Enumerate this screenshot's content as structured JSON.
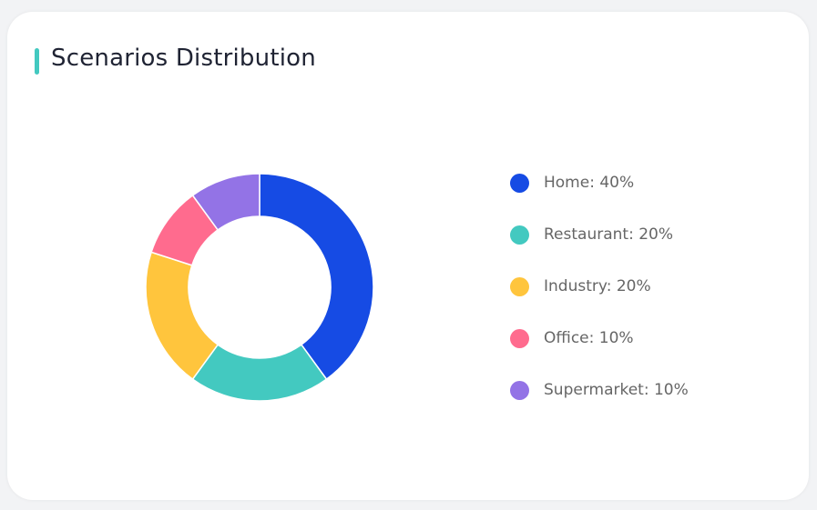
{
  "chart_data": {
    "type": "pie",
    "title": "Scenarios Distribution",
    "donut": true,
    "legend_position": "right",
    "slices": [
      {
        "label": "Home",
        "value": 40,
        "display": "Home: 40%",
        "color": "#164be4"
      },
      {
        "label": "Restaurant",
        "value": 20,
        "display": "Restaurant: 20%",
        "color": "#43c9c0"
      },
      {
        "label": "Industry",
        "value": 20,
        "display": "Industry: 20%",
        "color": "#ffc53d"
      },
      {
        "label": "Office",
        "value": 10,
        "display": "Office: 10%",
        "color": "#ff6b8e"
      },
      {
        "label": "Supermarket",
        "value": 10,
        "display": "Supermarket: 10%",
        "color": "#9373e6"
      }
    ],
    "accent_color": "#43c9c0"
  }
}
